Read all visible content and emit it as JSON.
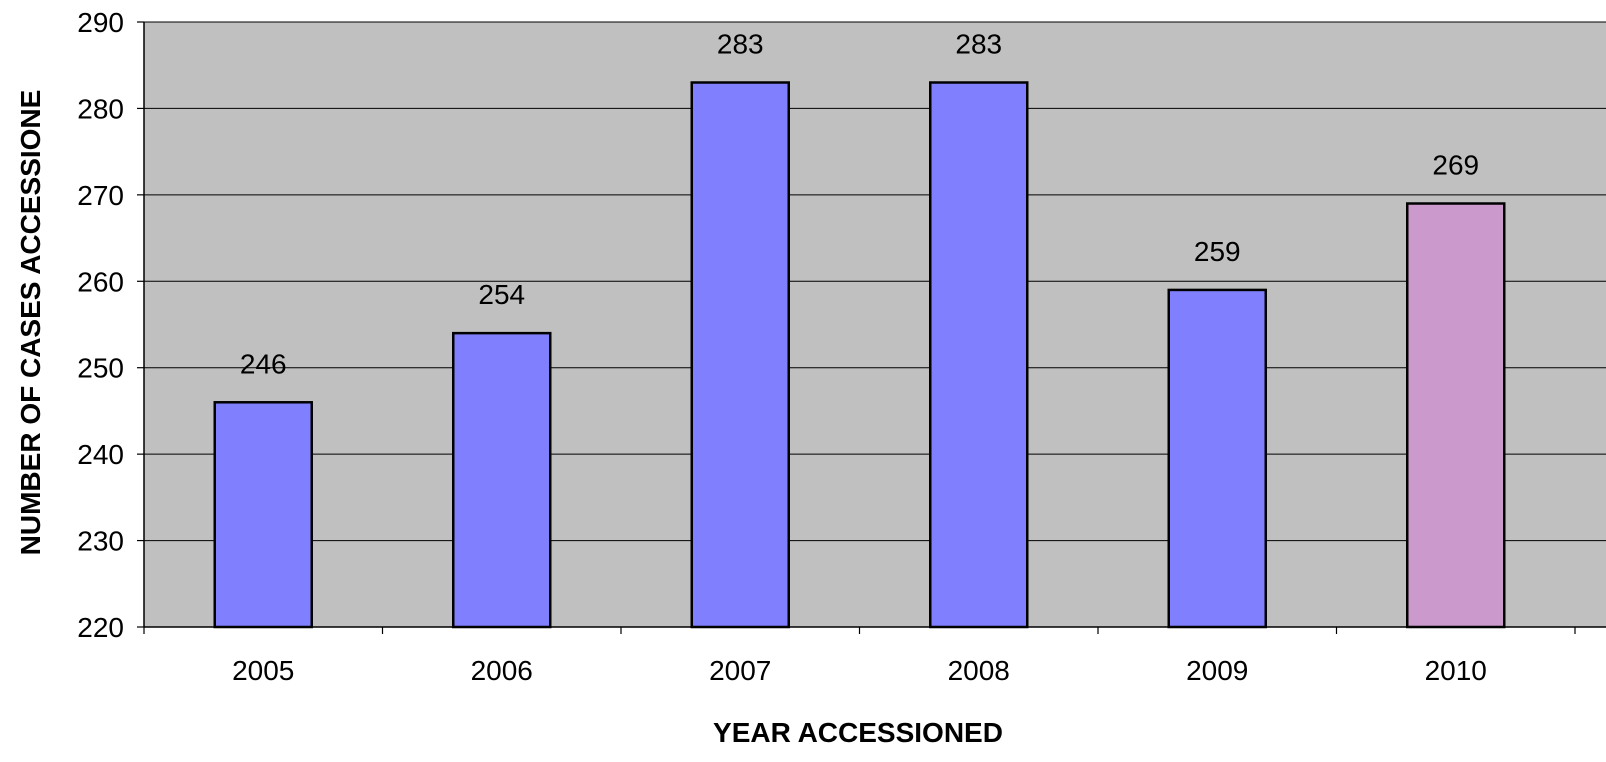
{
  "chart_data": {
    "type": "bar",
    "title": "",
    "xlabel": "YEAR ACCESSIONED",
    "ylabel": "NUMBER OF CASES ACCESSIONE",
    "categories": [
      "2005",
      "2006",
      "2007",
      "2008",
      "2009",
      "2010"
    ],
    "values": [
      246,
      254,
      283,
      283,
      259,
      269
    ],
    "data_labels": [
      "246",
      "254",
      "283",
      "283",
      "259",
      "269"
    ],
    "ylim": [
      220,
      290
    ],
    "yticks": [
      220,
      230,
      240,
      250,
      260,
      270,
      280,
      290
    ],
    "ytick_labels": [
      "220",
      "230",
      "240",
      "250",
      "260",
      "270",
      "280",
      "290"
    ],
    "grid": true,
    "legend": "none",
    "colors": {
      "plot_background": "#c0c0c0",
      "bar_default": "#8080ff",
      "bar_highlight": "#cc99cc",
      "bar_outline": "#000000",
      "gridline": "#000000"
    },
    "bar_colors": [
      "#8080ff",
      "#8080ff",
      "#8080ff",
      "#8080ff",
      "#8080ff",
      "#cc99cc"
    ]
  }
}
